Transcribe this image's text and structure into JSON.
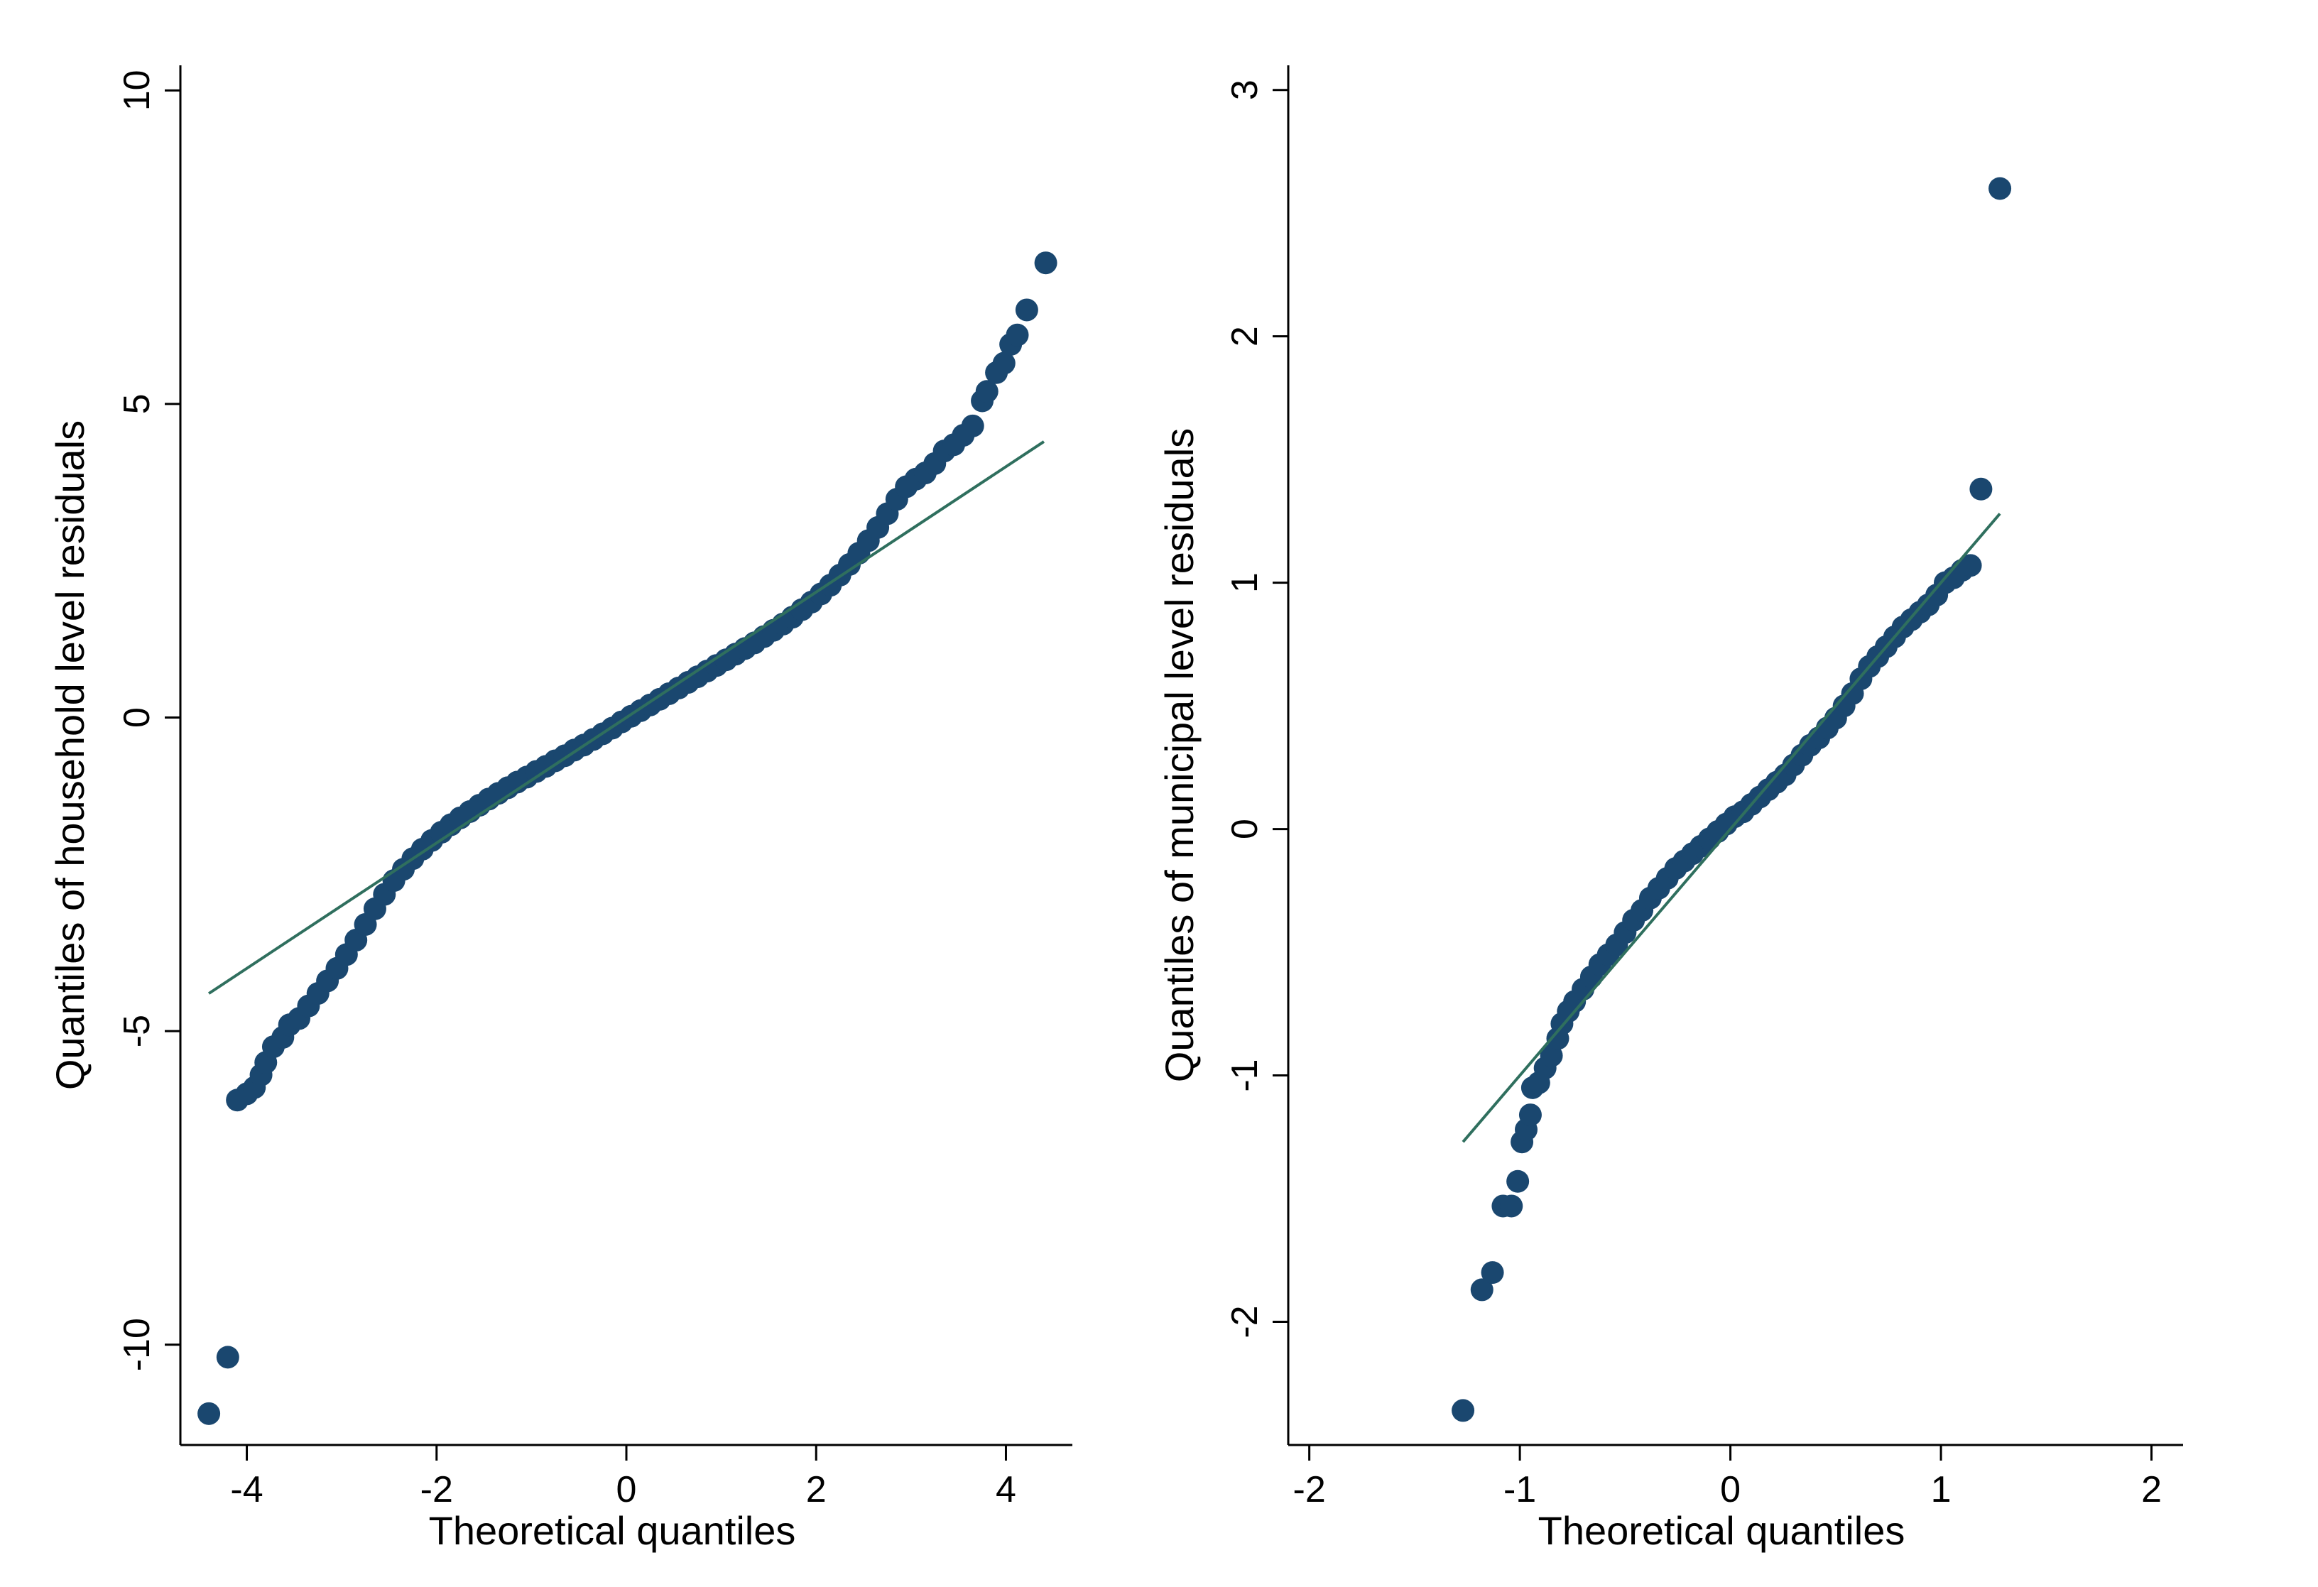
{
  "chart_data": [
    {
      "type": "scatter",
      "id": "household",
      "title": "",
      "xlabel": "Theoretical quantiles",
      "ylabel": "Quantiles of household level residuals",
      "xlim": [
        -4.7,
        4.7
      ],
      "ylim": [
        -11.6,
        10.4
      ],
      "x_ticks": [
        -4,
        -2,
        0,
        2,
        4
      ],
      "x_tick_labels": [
        "-4",
        "-2",
        "0",
        "2",
        "4"
      ],
      "y_ticks": [
        -10,
        -5,
        0,
        5,
        10
      ],
      "y_tick_labels": [
        "-10",
        "-5",
        "0",
        "5",
        "10"
      ],
      "grid": false,
      "marker_color": "#1a476f",
      "line_color": "#2f6f5e",
      "reference_line": {
        "x": [
          -4.4,
          4.4
        ],
        "y": [
          -4.4,
          4.4
        ]
      },
      "points": [
        {
          "x": -4.4,
          "y": -11.1
        },
        {
          "x": -4.2,
          "y": -10.2
        },
        {
          "x": -4.1,
          "y": -6.1
        },
        {
          "x": -4.0,
          "y": -6.0
        },
        {
          "x": -3.92,
          "y": -5.9
        },
        {
          "x": -3.85,
          "y": -5.7
        },
        {
          "x": -3.8,
          "y": -5.5
        },
        {
          "x": -3.72,
          "y": -5.25
        },
        {
          "x": -3.62,
          "y": -5.1
        },
        {
          "x": -3.55,
          "y": -4.9
        },
        {
          "x": -3.45,
          "y": -4.8
        },
        {
          "x": -3.35,
          "y": -4.6
        },
        {
          "x": -3.25,
          "y": -4.4
        },
        {
          "x": -3.15,
          "y": -4.2
        },
        {
          "x": -3.05,
          "y": -4.0
        },
        {
          "x": -2.95,
          "y": -3.78
        },
        {
          "x": -2.85,
          "y": -3.55
        },
        {
          "x": -2.75,
          "y": -3.3
        },
        {
          "x": -2.65,
          "y": -3.05
        },
        {
          "x": -2.55,
          "y": -2.82
        },
        {
          "x": -2.45,
          "y": -2.6
        },
        {
          "x": -2.35,
          "y": -2.42
        },
        {
          "x": -2.25,
          "y": -2.25
        },
        {
          "x": -2.15,
          "y": -2.1
        },
        {
          "x": -2.05,
          "y": -1.96
        },
        {
          "x": -1.95,
          "y": -1.83
        },
        {
          "x": -1.85,
          "y": -1.71
        },
        {
          "x": -1.75,
          "y": -1.6
        },
        {
          "x": -1.65,
          "y": -1.5
        },
        {
          "x": -1.55,
          "y": -1.4
        },
        {
          "x": -1.45,
          "y": -1.3
        },
        {
          "x": -1.35,
          "y": -1.21
        },
        {
          "x": -1.25,
          "y": -1.12
        },
        {
          "x": -1.15,
          "y": -1.03
        },
        {
          "x": -1.05,
          "y": -0.95
        },
        {
          "x": -0.95,
          "y": -0.86
        },
        {
          "x": -0.85,
          "y": -0.78
        },
        {
          "x": -0.75,
          "y": -0.69
        },
        {
          "x": -0.65,
          "y": -0.61
        },
        {
          "x": -0.55,
          "y": -0.52
        },
        {
          "x": -0.45,
          "y": -0.44
        },
        {
          "x": -0.35,
          "y": -0.35
        },
        {
          "x": -0.25,
          "y": -0.26
        },
        {
          "x": -0.15,
          "y": -0.17
        },
        {
          "x": -0.05,
          "y": -0.07
        },
        {
          "x": 0.05,
          "y": 0.02
        },
        {
          "x": 0.15,
          "y": 0.11
        },
        {
          "x": 0.25,
          "y": 0.2
        },
        {
          "x": 0.35,
          "y": 0.29
        },
        {
          "x": 0.45,
          "y": 0.38
        },
        {
          "x": 0.55,
          "y": 0.47
        },
        {
          "x": 0.65,
          "y": 0.56
        },
        {
          "x": 0.75,
          "y": 0.65
        },
        {
          "x": 0.85,
          "y": 0.74
        },
        {
          "x": 0.95,
          "y": 0.83
        },
        {
          "x": 1.05,
          "y": 0.92
        },
        {
          "x": 1.15,
          "y": 1.01
        },
        {
          "x": 1.25,
          "y": 1.1
        },
        {
          "x": 1.35,
          "y": 1.19
        },
        {
          "x": 1.45,
          "y": 1.29
        },
        {
          "x": 1.55,
          "y": 1.39
        },
        {
          "x": 1.65,
          "y": 1.49
        },
        {
          "x": 1.75,
          "y": 1.6
        },
        {
          "x": 1.85,
          "y": 1.72
        },
        {
          "x": 1.95,
          "y": 1.84
        },
        {
          "x": 2.05,
          "y": 1.97
        },
        {
          "x": 2.15,
          "y": 2.11
        },
        {
          "x": 2.25,
          "y": 2.27
        },
        {
          "x": 2.35,
          "y": 2.44
        },
        {
          "x": 2.45,
          "y": 2.62
        },
        {
          "x": 2.55,
          "y": 2.82
        },
        {
          "x": 2.65,
          "y": 3.03
        },
        {
          "x": 2.75,
          "y": 3.25
        },
        {
          "x": 2.85,
          "y": 3.48
        },
        {
          "x": 2.95,
          "y": 3.68
        },
        {
          "x": 3.05,
          "y": 3.8
        },
        {
          "x": 3.15,
          "y": 3.9
        },
        {
          "x": 3.25,
          "y": 4.05
        },
        {
          "x": 3.35,
          "y": 4.25
        },
        {
          "x": 3.45,
          "y": 4.35
        },
        {
          "x": 3.55,
          "y": 4.5
        },
        {
          "x": 3.65,
          "y": 4.65
        },
        {
          "x": 3.75,
          "y": 5.05
        },
        {
          "x": 3.8,
          "y": 5.2
        },
        {
          "x": 3.9,
          "y": 5.5
        },
        {
          "x": 3.98,
          "y": 5.65
        },
        {
          "x": 4.05,
          "y": 5.95
        },
        {
          "x": 4.12,
          "y": 6.1
        },
        {
          "x": 4.22,
          "y": 6.5
        },
        {
          "x": 4.42,
          "y": 7.25
        }
      ]
    },
    {
      "type": "scatter",
      "id": "municipal",
      "title": "",
      "xlabel": "Theoretical quantiles",
      "ylabel": "Quantiles of municipal level residuals",
      "xlim": [
        -2.1,
        2.15
      ],
      "ylim": [
        -2.5,
        3.1
      ],
      "x_ticks": [
        -2,
        -1,
        0,
        1,
        2
      ],
      "x_tick_labels": [
        "-2",
        "-1",
        "0",
        "1",
        "2"
      ],
      "y_ticks": [
        -2,
        -1,
        0,
        1,
        2,
        3
      ],
      "y_tick_labels": [
        "-2",
        "-1",
        "0",
        "1",
        "2",
        "3"
      ],
      "grid": false,
      "marker_color": "#1a476f",
      "line_color": "#2f6f5e",
      "reference_line": {
        "x": [
          -1.27,
          1.28
        ],
        "y": [
          -1.27,
          1.28
        ]
      },
      "points": [
        {
          "x": -1.27,
          "y": -2.36
        },
        {
          "x": -1.18,
          "y": -1.87
        },
        {
          "x": -1.13,
          "y": -1.8
        },
        {
          "x": -1.08,
          "y": -1.53
        },
        {
          "x": -1.04,
          "y": -1.53
        },
        {
          "x": -1.01,
          "y": -1.43
        },
        {
          "x": -0.99,
          "y": -1.27
        },
        {
          "x": -0.97,
          "y": -1.22
        },
        {
          "x": -0.95,
          "y": -1.16
        },
        {
          "x": -0.94,
          "y": -1.05
        },
        {
          "x": -0.91,
          "y": -1.03
        },
        {
          "x": -0.88,
          "y": -0.97
        },
        {
          "x": -0.85,
          "y": -0.92
        },
        {
          "x": -0.82,
          "y": -0.85
        },
        {
          "x": -0.8,
          "y": -0.79
        },
        {
          "x": -0.77,
          "y": -0.74
        },
        {
          "x": -0.74,
          "y": -0.7
        },
        {
          "x": -0.7,
          "y": -0.65
        },
        {
          "x": -0.66,
          "y": -0.6
        },
        {
          "x": -0.62,
          "y": -0.55
        },
        {
          "x": -0.58,
          "y": -0.51
        },
        {
          "x": -0.54,
          "y": -0.47
        },
        {
          "x": -0.5,
          "y": -0.42
        },
        {
          "x": -0.46,
          "y": -0.37
        },
        {
          "x": -0.42,
          "y": -0.33
        },
        {
          "x": -0.38,
          "y": -0.28
        },
        {
          "x": -0.34,
          "y": -0.24
        },
        {
          "x": -0.3,
          "y": -0.2
        },
        {
          "x": -0.26,
          "y": -0.16
        },
        {
          "x": -0.22,
          "y": -0.13
        },
        {
          "x": -0.18,
          "y": -0.1
        },
        {
          "x": -0.14,
          "y": -0.07
        },
        {
          "x": -0.1,
          "y": -0.04
        },
        {
          "x": -0.06,
          "y": -0.01
        },
        {
          "x": -0.02,
          "y": 0.02
        },
        {
          "x": 0.02,
          "y": 0.05
        },
        {
          "x": 0.06,
          "y": 0.07
        },
        {
          "x": 0.1,
          "y": 0.1
        },
        {
          "x": 0.14,
          "y": 0.13
        },
        {
          "x": 0.18,
          "y": 0.16
        },
        {
          "x": 0.22,
          "y": 0.19
        },
        {
          "x": 0.26,
          "y": 0.22
        },
        {
          "x": 0.3,
          "y": 0.26
        },
        {
          "x": 0.34,
          "y": 0.3
        },
        {
          "x": 0.38,
          "y": 0.34
        },
        {
          "x": 0.42,
          "y": 0.37
        },
        {
          "x": 0.46,
          "y": 0.41
        },
        {
          "x": 0.5,
          "y": 0.45
        },
        {
          "x": 0.54,
          "y": 0.5
        },
        {
          "x": 0.58,
          "y": 0.55
        },
        {
          "x": 0.62,
          "y": 0.61
        },
        {
          "x": 0.66,
          "y": 0.66
        },
        {
          "x": 0.7,
          "y": 0.7
        },
        {
          "x": 0.74,
          "y": 0.74
        },
        {
          "x": 0.78,
          "y": 0.78
        },
        {
          "x": 0.82,
          "y": 0.82
        },
        {
          "x": 0.86,
          "y": 0.85
        },
        {
          "x": 0.9,
          "y": 0.88
        },
        {
          "x": 0.94,
          "y": 0.91
        },
        {
          "x": 0.98,
          "y": 0.95
        },
        {
          "x": 1.02,
          "y": 1.0
        },
        {
          "x": 1.06,
          "y": 1.02
        },
        {
          "x": 1.1,
          "y": 1.05
        },
        {
          "x": 1.14,
          "y": 1.07
        },
        {
          "x": 1.19,
          "y": 1.38
        },
        {
          "x": 1.28,
          "y": 2.6
        }
      ]
    }
  ]
}
